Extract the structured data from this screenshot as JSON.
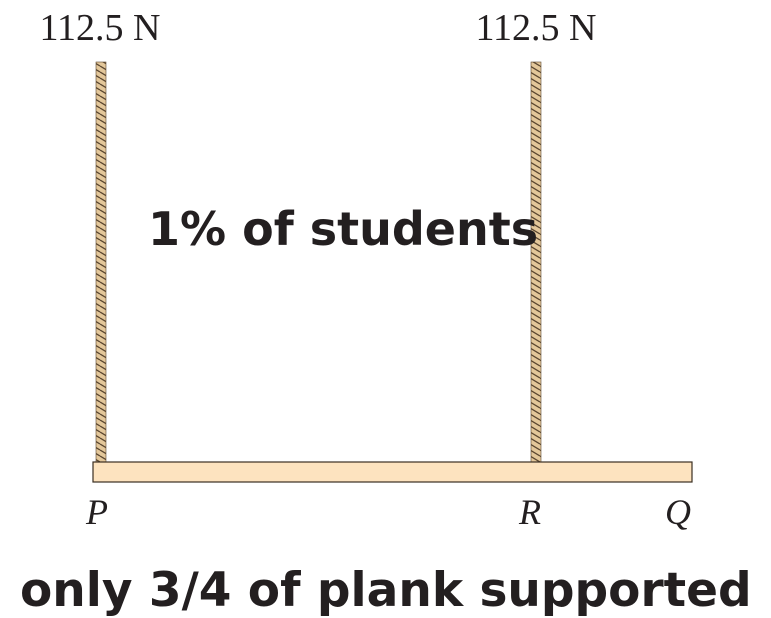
{
  "forces": [
    "112.5 N",
    "112.5 N"
  ],
  "points": [
    "P",
    "R",
    "Q"
  ],
  "caption": "1% of students",
  "footer": "only 3/4 of plank supported"
}
